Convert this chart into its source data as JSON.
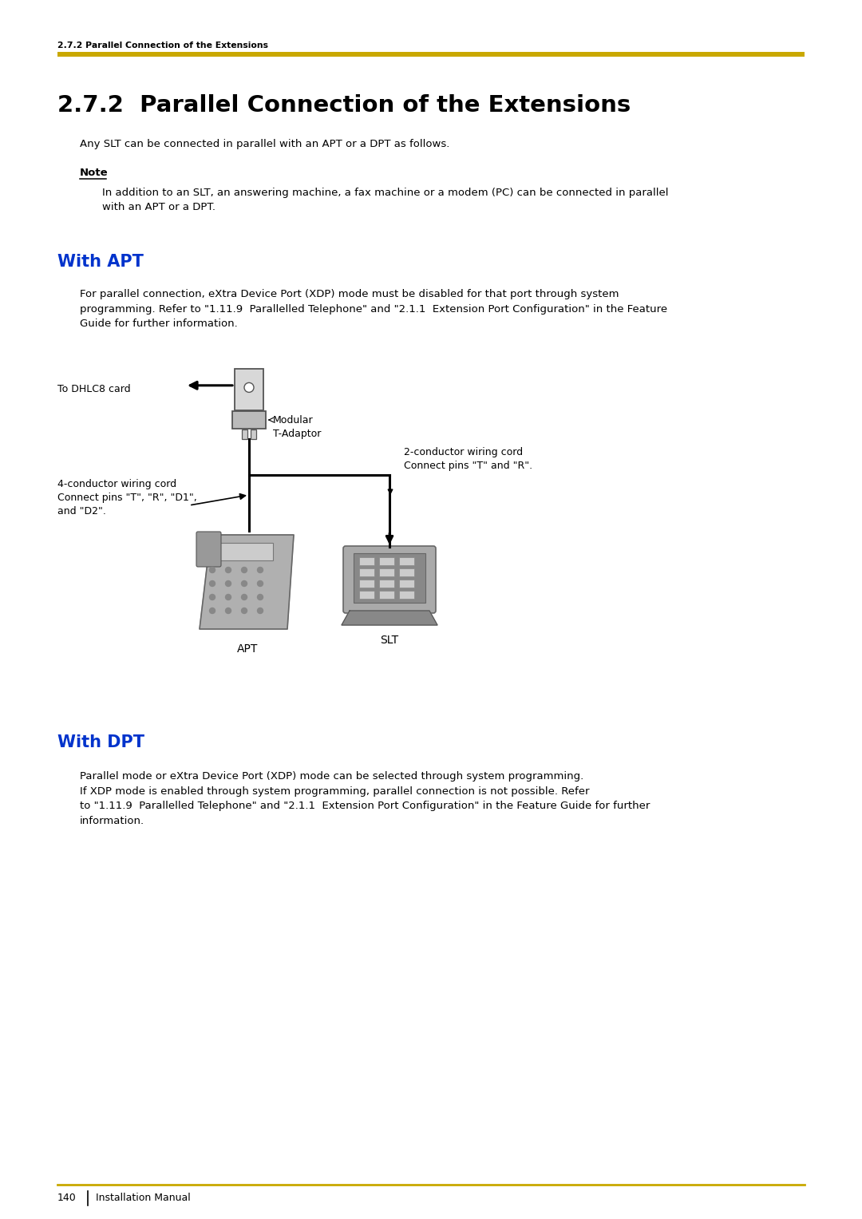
{
  "page_bg": "#ffffff",
  "header_text": "2.7.2 Parallel Connection of the Extensions",
  "gold_bar_color": "#C9A800",
  "title": "2.7.2  Parallel Connection of the Extensions",
  "intro_text": "Any SLT can be connected in parallel with an APT or a DPT as follows.",
  "note_label": "Note",
  "note_text": "In addition to an SLT, an answering machine, a fax machine or a modem (PC) can be connected in parallel\nwith an APT or a DPT.",
  "section1_title": "With APT",
  "section1_color": "#0033CC",
  "section1_body": "For parallel connection, eXtra Device Port (XDP) mode must be disabled for that port through system\nprogramming. Refer to \"1.11.9  Parallelled Telephone\" and \"2.1.1  Extension Port Configuration\" in the Feature\nGuide for further information.",
  "diagram_label_dhlc": "To DHLC8 card",
  "diagram_label_modular": "Modular\nT-Adaptor",
  "diagram_label_2cond": "2-conductor wiring cord\nConnect pins \"T\" and \"R\".",
  "diagram_label_4cond": "4-conductor wiring cord\nConnect pins \"T\", \"R\", \"D1\",\nand \"D2\".",
  "diagram_label_apt": "APT",
  "diagram_label_slt": "SLT",
  "section2_title": "With DPT",
  "section2_color": "#0033CC",
  "section2_body": "Parallel mode or eXtra Device Port (XDP) mode can be selected through system programming.\nIf XDP mode is enabled through system programming, parallel connection is not possible. Refer\nto \"1.11.9  Parallelled Telephone\" and \"2.1.1  Extension Port Configuration\" in the Feature Guide for further\ninformation.",
  "footer_page": "140",
  "footer_text": "Installation Manual"
}
